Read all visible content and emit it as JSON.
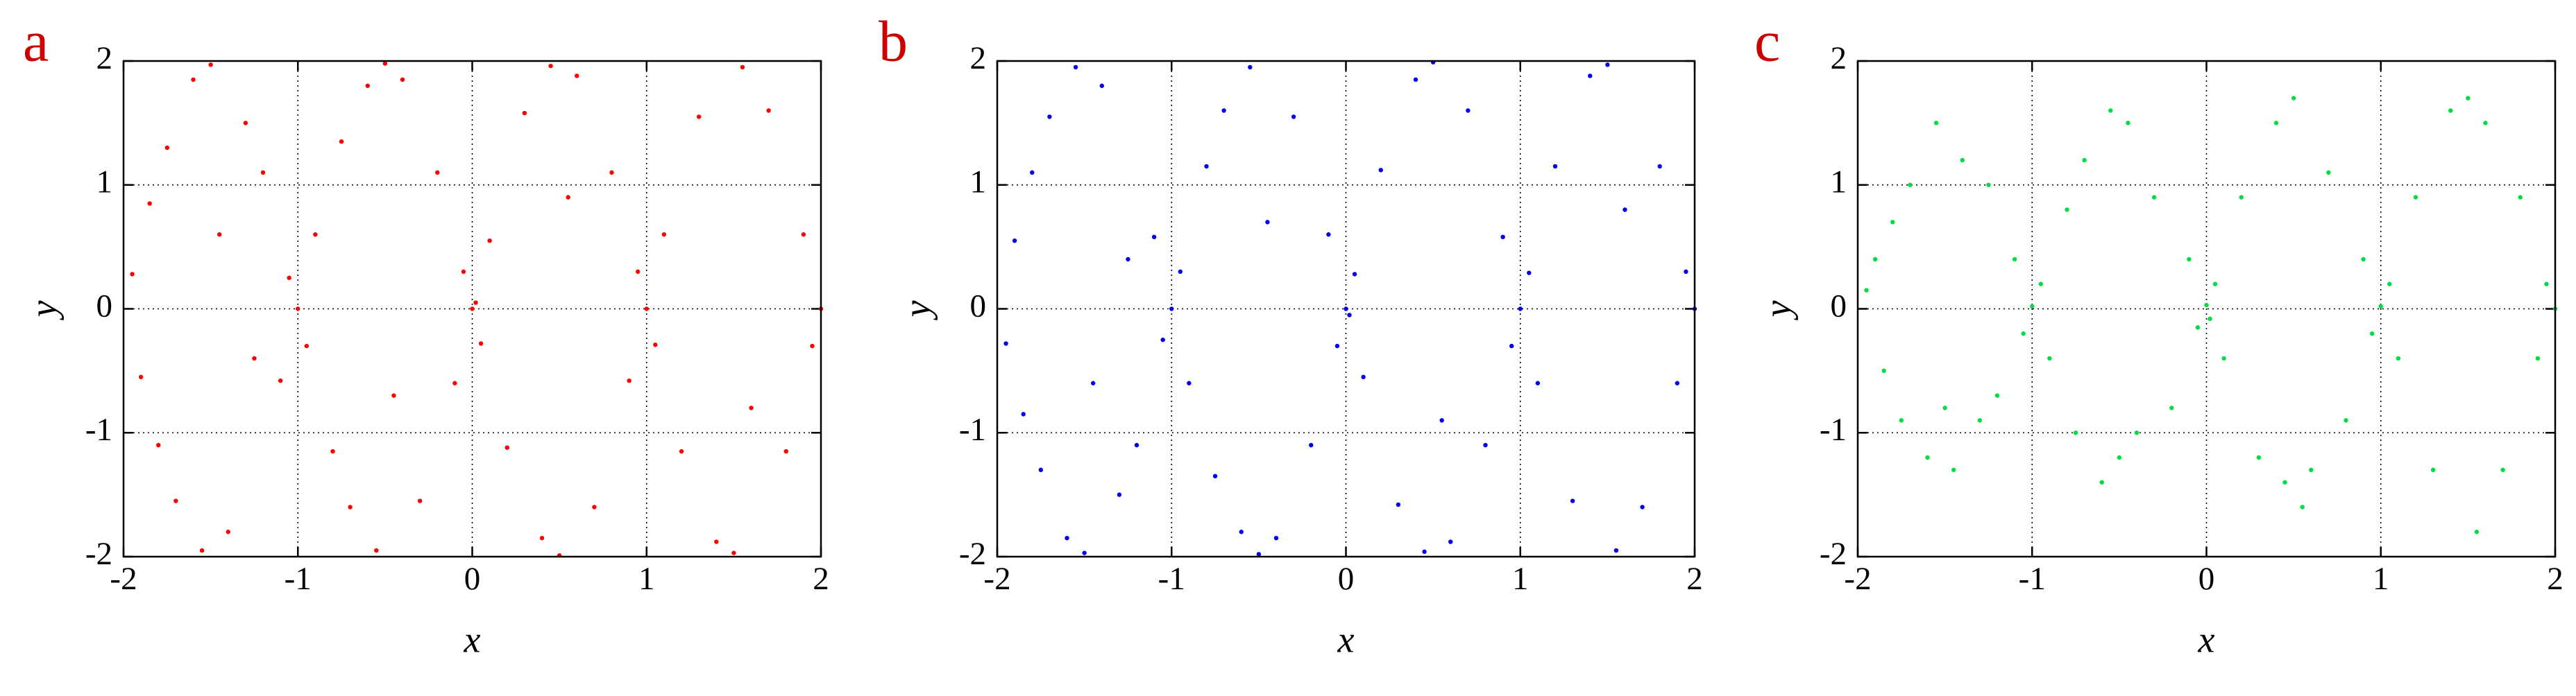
{
  "chart_data": [
    {
      "type": "scatter",
      "panel_label": "a",
      "x_label": "x",
      "y_label": "y",
      "color": "#ff0000",
      "grid": true,
      "xlim": [
        -2,
        2
      ],
      "ylim": [
        -2,
        2
      ],
      "xticks": [
        -2,
        -1,
        0,
        1,
        2
      ],
      "yticks": [
        -2,
        -1,
        0,
        1,
        2
      ],
      "x": [
        -1.95,
        -1.9,
        -1.85,
        -1.8,
        -1.75,
        -1.7,
        -1.6,
        -1.55,
        -1.5,
        -1.45,
        -1.4,
        -1.3,
        -1.25,
        -1.2,
        -1.1,
        -1.05,
        -1.0,
        -0.95,
        -0.9,
        -0.8,
        -0.75,
        -0.7,
        -0.6,
        -0.55,
        -0.5,
        -0.45,
        -0.4,
        -0.3,
        -0.2,
        -0.1,
        -0.05,
        0,
        0.02,
        0.05,
        0.1,
        0.2,
        0.3,
        0.4,
        0.45,
        0.5,
        0.55,
        0.6,
        0.7,
        0.8,
        0.9,
        0.95,
        1.0,
        1.05,
        1.1,
        1.2,
        1.3,
        1.4,
        1.5,
        1.55,
        1.6,
        1.7,
        1.8,
        1.9,
        1.95,
        2.0
      ],
      "y": [
        0.28,
        -0.55,
        0.85,
        -1.1,
        1.3,
        -1.55,
        1.85,
        -1.95,
        1.97,
        0.6,
        -1.8,
        1.5,
        -0.4,
        1.1,
        -0.58,
        0.25,
        0.0,
        -0.3,
        0.6,
        -1.15,
        1.35,
        -1.6,
        1.8,
        -1.95,
        1.98,
        -0.7,
        1.85,
        -1.55,
        1.1,
        -0.6,
        0.3,
        0.0,
        0.05,
        -0.28,
        0.55,
        -1.12,
        1.58,
        -1.85,
        1.96,
        -1.99,
        0.9,
        1.88,
        -1.6,
        1.1,
        -0.58,
        0.3,
        0.0,
        -0.29,
        0.6,
        -1.15,
        1.55,
        -1.88,
        -1.97,
        1.95,
        -0.8,
        1.6,
        -1.15,
        0.6,
        -0.3,
        0.0
      ]
    },
    {
      "type": "scatter",
      "panel_label": "b",
      "x_label": "x",
      "y_label": "y",
      "color": "#0000ee",
      "grid": true,
      "xlim": [
        -2,
        2
      ],
      "ylim": [
        -2,
        2
      ],
      "xticks": [
        -2,
        -1,
        0,
        1,
        2
      ],
      "yticks": [
        -2,
        -1,
        0,
        1,
        2
      ],
      "x": [
        -1.95,
        -1.9,
        -1.85,
        -1.8,
        -1.75,
        -1.7,
        -1.6,
        -1.55,
        -1.5,
        -1.45,
        -1.4,
        -1.3,
        -1.25,
        -1.2,
        -1.1,
        -1.05,
        -1.0,
        -0.95,
        -0.9,
        -0.8,
        -0.75,
        -0.7,
        -0.6,
        -0.55,
        -0.5,
        -0.45,
        -0.4,
        -0.3,
        -0.2,
        -0.1,
        -0.05,
        0,
        0.02,
        0.05,
        0.1,
        0.2,
        0.3,
        0.4,
        0.45,
        0.5,
        0.55,
        0.6,
        0.7,
        0.8,
        0.9,
        0.95,
        1.0,
        1.05,
        1.1,
        1.2,
        1.3,
        1.4,
        1.5,
        1.55,
        1.6,
        1.7,
        1.8,
        1.9,
        1.95,
        2.0
      ],
      "y": [
        -0.28,
        0.55,
        -0.85,
        1.1,
        -1.3,
        1.55,
        -1.85,
        1.95,
        -1.97,
        -0.6,
        1.8,
        -1.5,
        0.4,
        -1.1,
        0.58,
        -0.25,
        0.0,
        0.3,
        -0.6,
        1.15,
        -1.35,
        1.6,
        -1.8,
        1.95,
        -1.98,
        0.7,
        -1.85,
        1.55,
        -1.1,
        0.6,
        -0.3,
        0.0,
        -0.05,
        0.28,
        -0.55,
        1.12,
        -1.58,
        1.85,
        -1.96,
        1.99,
        -0.9,
        -1.88,
        1.6,
        -1.1,
        0.58,
        -0.3,
        0.0,
        0.29,
        -0.6,
        1.15,
        -1.55,
        1.88,
        1.97,
        -1.95,
        0.8,
        -1.6,
        1.15,
        -0.6,
        0.3,
        0.0
      ]
    },
    {
      "type": "scatter",
      "panel_label": "c",
      "x_label": "x",
      "y_label": "y",
      "color": "#00dd44",
      "grid": true,
      "xlim": [
        -2,
        2
      ],
      "ylim": [
        -2,
        2
      ],
      "xticks": [
        -2,
        -1,
        0,
        1,
        2
      ],
      "yticks": [
        -2,
        -1,
        0,
        1,
        2
      ],
      "x": [
        -1.95,
        -1.9,
        -1.85,
        -1.8,
        -1.75,
        -1.7,
        -1.6,
        -1.55,
        -1.5,
        -1.45,
        -1.4,
        -1.3,
        -1.25,
        -1.2,
        -1.1,
        -1.05,
        -1.0,
        -0.95,
        -0.9,
        -0.8,
        -0.75,
        -0.7,
        -0.6,
        -0.55,
        -0.5,
        -0.45,
        -0.4,
        -0.3,
        -0.2,
        -0.1,
        -0.05,
        0,
        0.02,
        0.05,
        0.1,
        0.2,
        0.3,
        0.4,
        0.45,
        0.5,
        0.55,
        0.6,
        0.7,
        0.8,
        0.9,
        0.95,
        1.0,
        1.05,
        1.1,
        1.2,
        1.3,
        1.4,
        1.5,
        1.55,
        1.6,
        1.7,
        1.8,
        1.9,
        1.95,
        2.0
      ],
      "y": [
        0.15,
        0.4,
        -0.5,
        0.7,
        -0.9,
        1.0,
        -1.2,
        1.5,
        -0.8,
        -1.3,
        1.2,
        -0.9,
        1.0,
        -0.7,
        0.4,
        -0.2,
        0.02,
        0.2,
        -0.4,
        0.8,
        -1.0,
        1.2,
        -1.4,
        1.6,
        -1.2,
        1.5,
        -1.0,
        0.9,
        -0.8,
        0.4,
        -0.15,
        0.03,
        -0.08,
        0.2,
        -0.4,
        0.9,
        -1.2,
        1.5,
        -1.4,
        1.7,
        -1.6,
        -1.3,
        1.1,
        -0.9,
        0.4,
        -0.2,
        0.02,
        0.2,
        -0.4,
        0.9,
        -1.3,
        1.6,
        1.7,
        -1.8,
        1.5,
        -1.3,
        0.9,
        -0.4,
        0.2,
        0.0
      ]
    }
  ]
}
